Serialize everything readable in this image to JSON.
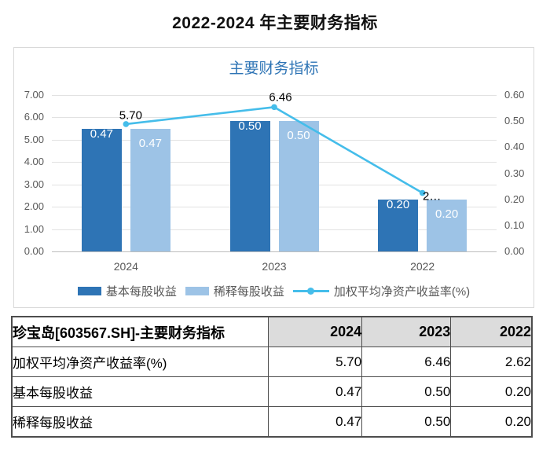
{
  "page": {
    "title": "2022-2024 年主要财务指标"
  },
  "chart": {
    "title": "主要财务指标",
    "legend": [
      "基本每股收益",
      "稀释每股收益",
      "加权平均净资产收益率(%)"
    ]
  },
  "chart_data": {
    "type": "bar",
    "subtype": "grouped bars + line, dual y-axis",
    "title": "主要财务指标",
    "categories": [
      "2024",
      "2023",
      "2022"
    ],
    "series": [
      {
        "name": "基本每股收益",
        "type": "bar",
        "axis": "right",
        "values": [
          0.47,
          0.5,
          0.2
        ],
        "labels": [
          "0.47",
          "0.50",
          "0.20"
        ]
      },
      {
        "name": "稀释每股收益",
        "type": "bar",
        "axis": "right",
        "values": [
          0.47,
          0.5,
          0.2
        ],
        "labels": [
          "0.47",
          "0.50",
          "0.20"
        ]
      },
      {
        "name": "加权平均净资产收益率(%)",
        "type": "line",
        "axis": "left",
        "values": [
          5.7,
          6.46,
          2.62
        ],
        "labels": [
          "5.70",
          "6.46",
          "2…"
        ]
      }
    ],
    "left_axis": {
      "min": 0,
      "max": 7,
      "ticks": [
        "7.00",
        "6.00",
        "5.00",
        "4.00",
        "3.00",
        "2.00",
        "1.00",
        "0.00"
      ]
    },
    "right_axis": {
      "min": 0,
      "max": 0.6,
      "ticks": [
        "0.60",
        "0.50",
        "0.40",
        "0.30",
        "0.20",
        "0.10",
        "0.00"
      ]
    },
    "grid": true,
    "legend_position": "bottom"
  },
  "table": {
    "header": {
      "title": "珍宝岛[603567.SH]-主要财务指标",
      "years": [
        "2024",
        "2023",
        "2022"
      ]
    },
    "rows": [
      {
        "label": "加权平均净资产收益率(%)",
        "values": [
          "5.70",
          "6.46",
          "2.62"
        ]
      },
      {
        "label": "基本每股收益",
        "values": [
          "0.47",
          "0.50",
          "0.20"
        ]
      },
      {
        "label": "稀释每股收益",
        "values": [
          "0.47",
          "0.50",
          "0.20"
        ]
      }
    ]
  },
  "colors": {
    "bar_dark_blue": "#2E74B5",
    "bar_light_blue": "#9DC3E6",
    "line_blue": "#45BDEA",
    "chart_title_blue": "#2E74B5",
    "axis_text_gray": "#595959",
    "gridline_gray": "#E2E2E2",
    "chart_border_gray": "#D9D9D9",
    "table_header_bg": "#DCDCDC",
    "table_border": "#4D4D4D",
    "bar_label_white": "#FFFFFF"
  }
}
